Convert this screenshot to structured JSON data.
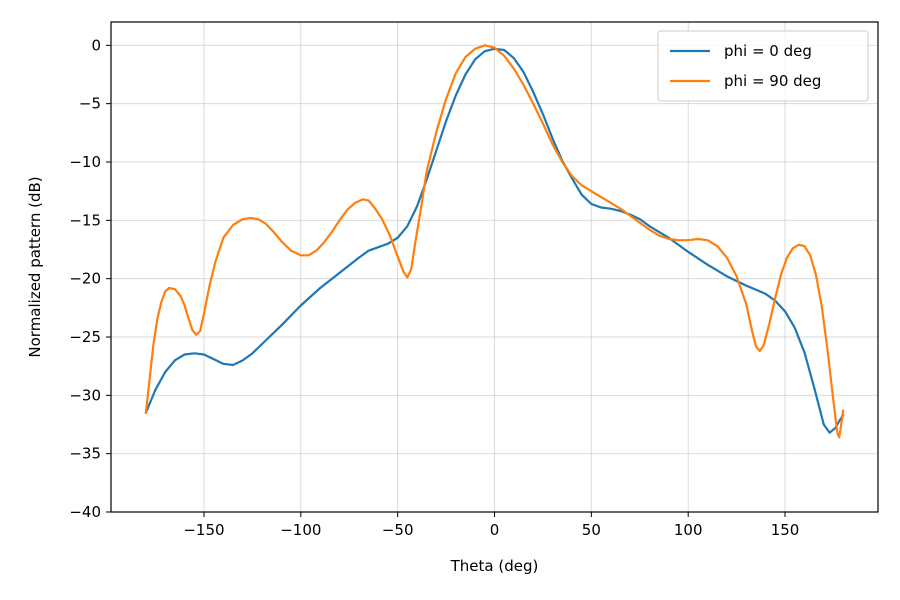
{
  "chart_data": {
    "type": "line",
    "title": "",
    "xlabel": "Theta (deg)",
    "ylabel": "Normalized pattern (dB)",
    "xlim": [
      -198,
      198
    ],
    "ylim": [
      -40,
      2
    ],
    "x_ticks": [
      -150,
      -100,
      -50,
      0,
      50,
      100,
      150
    ],
    "y_ticks": [
      0,
      -5,
      -10,
      -15,
      -20,
      -25,
      -30,
      -35,
      -40
    ],
    "x_tick_labels": [
      "−150",
      "−100",
      "−50",
      "0",
      "50",
      "100",
      "150"
    ],
    "y_tick_labels": [
      "0",
      "−5",
      "−10",
      "−15",
      "−20",
      "−25",
      "−30",
      "−35",
      "−40"
    ],
    "grid": true,
    "legend_position": "top-right",
    "series": [
      {
        "name": "phi = 0 deg",
        "color": "#1f77b4",
        "points": [
          [
            -180,
            -31.5
          ],
          [
            -175,
            -29.5
          ],
          [
            -170,
            -28.0
          ],
          [
            -165,
            -27.0
          ],
          [
            -160,
            -26.5
          ],
          [
            -155,
            -26.4
          ],
          [
            -150,
            -26.5
          ],
          [
            -145,
            -26.9
          ],
          [
            -140,
            -27.3
          ],
          [
            -135,
            -27.4
          ],
          [
            -130,
            -27.0
          ],
          [
            -125,
            -26.4
          ],
          [
            -120,
            -25.6
          ],
          [
            -110,
            -24.0
          ],
          [
            -100,
            -22.3
          ],
          [
            -90,
            -20.8
          ],
          [
            -80,
            -19.5
          ],
          [
            -70,
            -18.2
          ],
          [
            -65,
            -17.6
          ],
          [
            -60,
            -17.3
          ],
          [
            -55,
            -17.0
          ],
          [
            -50,
            -16.5
          ],
          [
            -45,
            -15.5
          ],
          [
            -40,
            -13.8
          ],
          [
            -35,
            -11.5
          ],
          [
            -30,
            -9.0
          ],
          [
            -25,
            -6.5
          ],
          [
            -20,
            -4.3
          ],
          [
            -15,
            -2.5
          ],
          [
            -10,
            -1.2
          ],
          [
            -5,
            -0.5
          ],
          [
            0,
            -0.3
          ],
          [
            5,
            -0.4
          ],
          [
            10,
            -1.1
          ],
          [
            15,
            -2.3
          ],
          [
            20,
            -4.0
          ],
          [
            25,
            -5.9
          ],
          [
            30,
            -8.0
          ],
          [
            35,
            -9.9
          ],
          [
            40,
            -11.4
          ],
          [
            45,
            -12.8
          ],
          [
            50,
            -13.6
          ],
          [
            55,
            -13.9
          ],
          [
            60,
            -14.0
          ],
          [
            65,
            -14.2
          ],
          [
            70,
            -14.5
          ],
          [
            75,
            -14.9
          ],
          [
            80,
            -15.5
          ],
          [
            90,
            -16.5
          ],
          [
            100,
            -17.7
          ],
          [
            110,
            -18.8
          ],
          [
            120,
            -19.8
          ],
          [
            130,
            -20.6
          ],
          [
            140,
            -21.3
          ],
          [
            145,
            -21.9
          ],
          [
            150,
            -22.8
          ],
          [
            155,
            -24.2
          ],
          [
            160,
            -26.3
          ],
          [
            165,
            -29.3
          ],
          [
            170,
            -32.5
          ],
          [
            173,
            -33.2
          ],
          [
            176,
            -32.8
          ],
          [
            178,
            -32.2
          ],
          [
            180,
            -31.7
          ]
        ]
      },
      {
        "name": "phi = 90 deg",
        "color": "#ff7f0e",
        "points": [
          [
            -180,
            -31.5
          ],
          [
            -178,
            -28.5
          ],
          [
            -176,
            -25.5
          ],
          [
            -174,
            -23.4
          ],
          [
            -172,
            -22.0
          ],
          [
            -170,
            -21.1
          ],
          [
            -168,
            -20.8
          ],
          [
            -165,
            -20.9
          ],
          [
            -162,
            -21.5
          ],
          [
            -160,
            -22.3
          ],
          [
            -158,
            -23.4
          ],
          [
            -156,
            -24.4
          ],
          [
            -154,
            -24.8
          ],
          [
            -152,
            -24.5
          ],
          [
            -150,
            -23.0
          ],
          [
            -147,
            -20.5
          ],
          [
            -144,
            -18.5
          ],
          [
            -140,
            -16.5
          ],
          [
            -135,
            -15.4
          ],
          [
            -130,
            -14.9
          ],
          [
            -126,
            -14.8
          ],
          [
            -122,
            -14.9
          ],
          [
            -118,
            -15.3
          ],
          [
            -114,
            -16.0
          ],
          [
            -110,
            -16.8
          ],
          [
            -105,
            -17.6
          ],
          [
            -100,
            -18.0
          ],
          [
            -96,
            -18.0
          ],
          [
            -92,
            -17.6
          ],
          [
            -88,
            -16.9
          ],
          [
            -84,
            -16.0
          ],
          [
            -80,
            -15.0
          ],
          [
            -76,
            -14.1
          ],
          [
            -72,
            -13.5
          ],
          [
            -68,
            -13.2
          ],
          [
            -65,
            -13.3
          ],
          [
            -62,
            -13.9
          ],
          [
            -58,
            -14.9
          ],
          [
            -54,
            -16.3
          ],
          [
            -50,
            -18.1
          ],
          [
            -47,
            -19.4
          ],
          [
            -45,
            -19.9
          ],
          [
            -43,
            -19.2
          ],
          [
            -41,
            -17.0
          ],
          [
            -38,
            -14.0
          ],
          [
            -35,
            -10.8
          ],
          [
            -30,
            -7.4
          ],
          [
            -25,
            -4.6
          ],
          [
            -20,
            -2.4
          ],
          [
            -15,
            -1.0
          ],
          [
            -10,
            -0.3
          ],
          [
            -5,
            0.0
          ],
          [
            0,
            -0.2
          ],
          [
            5,
            -0.9
          ],
          [
            10,
            -2.0
          ],
          [
            15,
            -3.4
          ],
          [
            20,
            -5.0
          ],
          [
            25,
            -6.7
          ],
          [
            30,
            -8.5
          ],
          [
            35,
            -10.0
          ],
          [
            40,
            -11.2
          ],
          [
            45,
            -12.0
          ],
          [
            50,
            -12.5
          ],
          [
            55,
            -13.0
          ],
          [
            60,
            -13.5
          ],
          [
            65,
            -14.0
          ],
          [
            70,
            -14.6
          ],
          [
            75,
            -15.2
          ],
          [
            80,
            -15.8
          ],
          [
            85,
            -16.3
          ],
          [
            90,
            -16.6
          ],
          [
            95,
            -16.7
          ],
          [
            100,
            -16.7
          ],
          [
            105,
            -16.6
          ],
          [
            110,
            -16.7
          ],
          [
            115,
            -17.2
          ],
          [
            120,
            -18.2
          ],
          [
            125,
            -19.8
          ],
          [
            130,
            -22.2
          ],
          [
            133,
            -24.5
          ],
          [
            135,
            -25.8
          ],
          [
            137,
            -26.2
          ],
          [
            139,
            -25.7
          ],
          [
            142,
            -23.8
          ],
          [
            145,
            -21.6
          ],
          [
            148,
            -19.6
          ],
          [
            151,
            -18.2
          ],
          [
            154,
            -17.4
          ],
          [
            157,
            -17.1
          ],
          [
            160,
            -17.2
          ],
          [
            163,
            -18.0
          ],
          [
            166,
            -19.7
          ],
          [
            169,
            -22.4
          ],
          [
            172,
            -26.2
          ],
          [
            175,
            -30.5
          ],
          [
            177,
            -33.2
          ],
          [
            178,
            -33.6
          ],
          [
            179,
            -32.5
          ],
          [
            180,
            -31.3
          ]
        ]
      }
    ]
  }
}
